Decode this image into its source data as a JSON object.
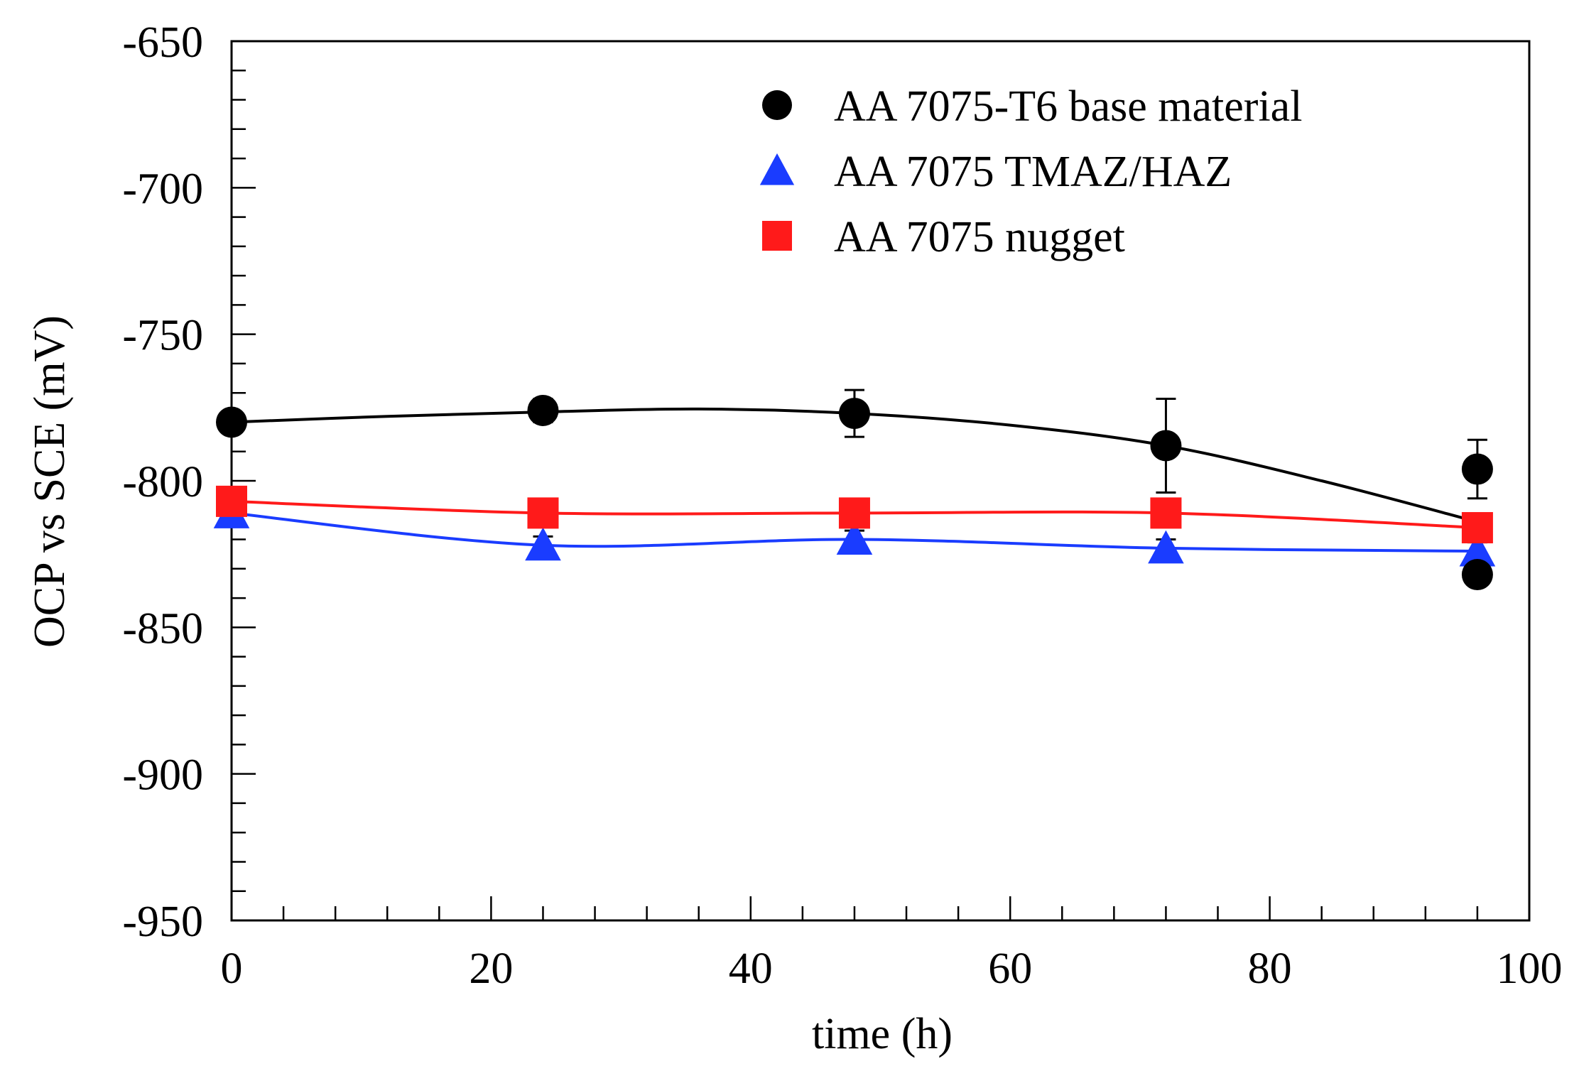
{
  "chart_data": {
    "type": "scatter",
    "title": "",
    "xlabel": "time (h)",
    "ylabel": "OCP vs SCE (mV)",
    "xlim": [
      0,
      100
    ],
    "ylim": [
      -950,
      -650
    ],
    "xticks": [
      0,
      20,
      40,
      60,
      80,
      100
    ],
    "yticks": [
      -650,
      -700,
      -750,
      -800,
      -850,
      -900,
      -950
    ],
    "xtick_labels": [
      "0",
      "20",
      "40",
      "60",
      "80",
      "100"
    ],
    "ytick_labels": [
      "-650",
      "-700",
      "-750",
      "-800",
      "-850",
      "-900",
      "-950"
    ],
    "grid": false,
    "legend_position": "top-right",
    "series": [
      {
        "name": "AA 7075-T6 base material",
        "marker": "circle",
        "color": "#000000",
        "x": [
          0,
          24,
          48,
          72,
          96
        ],
        "y": [
          -780,
          -776,
          -777,
          -788,
          -796
        ],
        "y_err": [
          3,
          4,
          8,
          16,
          10
        ],
        "extra_points": [
          [
            96,
            -832
          ]
        ],
        "fit_line": [
          [
            0,
            -780
          ],
          [
            12,
            -778
          ],
          [
            24,
            -776.5
          ],
          [
            36,
            -775.5
          ],
          [
            48,
            -777
          ],
          [
            60,
            -781
          ],
          [
            72,
            -788
          ],
          [
            84,
            -800
          ],
          [
            96,
            -814
          ]
        ]
      },
      {
        "name": "AA 7075 TMAZ/HAZ",
        "marker": "triangle",
        "color": "#1a3cff",
        "x": [
          0,
          24,
          48,
          72,
          96
        ],
        "y": [
          -811,
          -822,
          -820,
          -823,
          -824
        ],
        "y_err": [
          2,
          3,
          3,
          3,
          3
        ],
        "fit_line": [
          [
            0,
            -811
          ],
          [
            24,
            -822
          ],
          [
            48,
            -820
          ],
          [
            72,
            -823
          ],
          [
            96,
            -824
          ]
        ]
      },
      {
        "name": "AA 7075 nugget",
        "marker": "square",
        "color": "#ff1a1a",
        "x": [
          0,
          24,
          48,
          72,
          96
        ],
        "y": [
          -807,
          -811,
          -811,
          -811,
          -816
        ],
        "y_err": [
          2,
          2,
          2,
          2,
          2
        ],
        "fit_line": [
          [
            0,
            -807
          ],
          [
            24,
            -811
          ],
          [
            48,
            -811
          ],
          [
            72,
            -811
          ],
          [
            96,
            -816
          ]
        ]
      }
    ]
  }
}
